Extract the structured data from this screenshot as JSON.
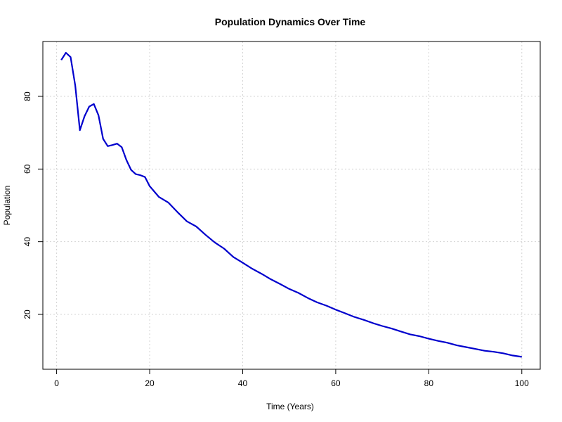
{
  "chart_data": {
    "type": "line",
    "title": "Population Dynamics Over Time",
    "xlabel": "Time (Years)",
    "ylabel": "Population",
    "xlim": [
      -2.96,
      103.96
    ],
    "ylim": [
      4.9,
      95.1
    ],
    "xticks": [
      0,
      20,
      40,
      60,
      80,
      100
    ],
    "yticks": [
      20,
      40,
      60,
      80
    ],
    "xtick_labels": [
      "0",
      "20",
      "40",
      "60",
      "80",
      "100"
    ],
    "ytick_labels": [
      "20",
      "40",
      "60",
      "80"
    ],
    "grid": true,
    "line_color": "#0000cd",
    "series": [
      {
        "x": [
          1,
          2,
          3,
          4,
          5,
          6,
          7,
          8,
          9,
          10,
          11,
          12,
          13,
          14,
          15,
          16,
          17,
          18,
          19,
          20,
          22,
          24,
          26,
          28,
          30,
          32,
          34,
          36,
          38,
          40,
          42,
          44,
          46,
          48,
          50,
          52,
          54,
          56,
          58,
          60,
          62,
          64,
          66,
          68,
          70,
          72,
          74,
          76,
          78,
          80,
          82,
          84,
          86,
          88,
          90,
          92,
          94,
          96,
          98,
          100
        ],
        "values": [
          90,
          92,
          90.8,
          83,
          70.7,
          74.5,
          77.2,
          77.9,
          74.8,
          68.3,
          66.3,
          66.6,
          67,
          66,
          62.5,
          59.8,
          58.6,
          58.3,
          57.8,
          55.3,
          52.3,
          50.8,
          48.1,
          45.6,
          44.2,
          41.9,
          39.8,
          38.1,
          35.8,
          34.2,
          32.6,
          31.2,
          29.7,
          28.4,
          27,
          25.9,
          24.5,
          23.3,
          22.4,
          21.3,
          20.3,
          19.3,
          18.5,
          17.6,
          16.8,
          16.1,
          15.3,
          14.5,
          14,
          13.3,
          12.7,
          12.2,
          11.5,
          11,
          10.5,
          10,
          9.7,
          9.3,
          8.7,
          8.3
        ]
      }
    ]
  }
}
